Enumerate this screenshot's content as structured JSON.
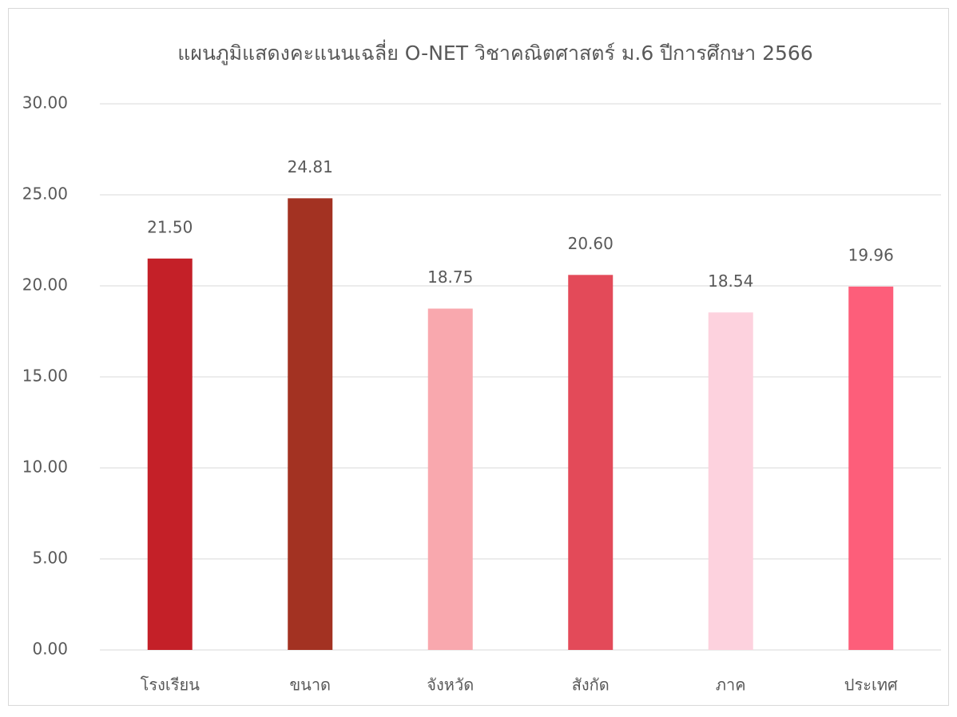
{
  "chart_data": {
    "type": "bar",
    "title": "แผนภูมิแสดงคะแนนเฉลี่ย O-NET วิชาคณิตศาสตร์ ม.6 ปีการศึกษา 2566",
    "categories": [
      "โรงเรียน",
      "ขนาด",
      "จังหวัด",
      "สังกัด",
      "ภาค",
      "ประเทศ"
    ],
    "values": [
      21.5,
      24.81,
      18.75,
      20.6,
      18.54,
      19.96
    ],
    "value_labels": [
      "21.50",
      "24.81",
      "18.75",
      "20.60",
      "18.54",
      "19.96"
    ],
    "colors": [
      "#c42028",
      "#a33222",
      "#f9a8ae",
      "#e34a59",
      "#fdd2de",
      "#fd5e7a"
    ],
    "ylim": [
      0,
      30
    ],
    "yticks": [
      {
        "value": 0,
        "label": "0.00"
      },
      {
        "value": 5,
        "label": "5.00"
      },
      {
        "value": 10,
        "label": "10.00"
      },
      {
        "value": 15,
        "label": "15.00"
      },
      {
        "value": 20,
        "label": "20.00"
      },
      {
        "value": 25,
        "label": "25.00"
      },
      {
        "value": 30,
        "label": "30.00"
      }
    ],
    "grid": true
  }
}
